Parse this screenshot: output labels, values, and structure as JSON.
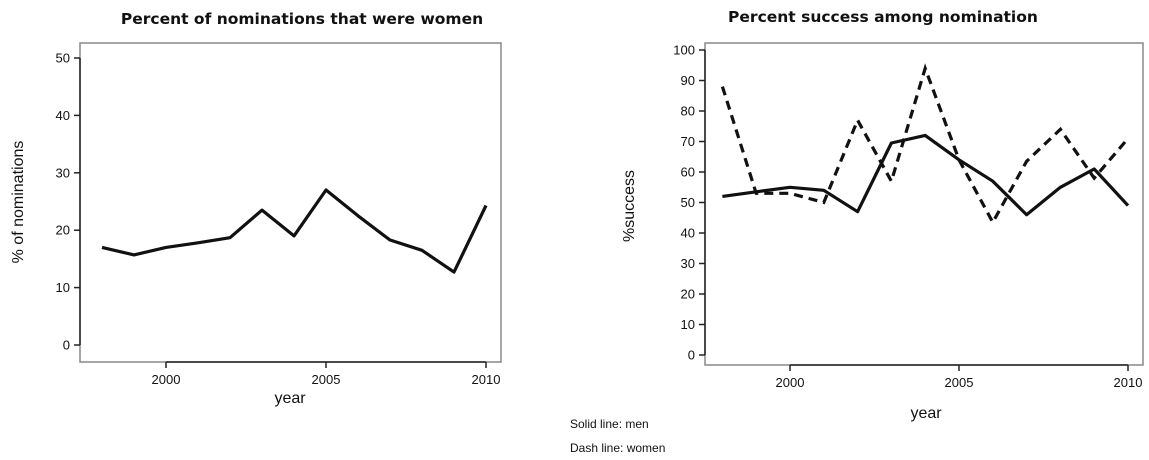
{
  "chart_data": [
    {
      "type": "line",
      "title": "Percent of nominations that were women",
      "xlabel": "year",
      "ylabel": "% of nominations",
      "xlim": [
        1997.5,
        2010.5
      ],
      "ylim": [
        0,
        50
      ],
      "xticks": [
        2000,
        2005,
        2010
      ],
      "yticks": [
        0,
        10,
        20,
        30,
        40,
        50
      ],
      "grid": false,
      "series": [
        {
          "style": "solid",
          "x": [
            1998,
            1999,
            2000,
            2001,
            2002,
            2003,
            2004,
            2005,
            2006,
            2007,
            2008,
            2009,
            2010
          ],
          "values": [
            17,
            15.7,
            17,
            17.8,
            18.7,
            23.5,
            19,
            27,
            22.5,
            18.3,
            16.5,
            12.7,
            24.3
          ]
        }
      ]
    },
    {
      "type": "line",
      "title": "Percent success among nomination",
      "xlabel": "year",
      "ylabel": "%success",
      "xlim": [
        1997.5,
        2010.1
      ],
      "ylim": [
        0,
        100
      ],
      "xticks": [
        2000,
        2005,
        2010
      ],
      "yticks": [
        0,
        10,
        20,
        30,
        40,
        50,
        60,
        70,
        80,
        90,
        100
      ],
      "grid": false,
      "legend_notes": [
        "Solid line: men",
        "Dash line: women"
      ],
      "series": [
        {
          "style": "solid",
          "x": [
            1998,
            1999,
            2000,
            2001,
            2002,
            2003,
            2004,
            2005,
            2006,
            2007,
            2008,
            2009,
            2010
          ],
          "values": [
            52,
            53.5,
            55,
            54,
            47,
            69.5,
            72,
            64,
            57,
            46,
            55,
            61,
            49
          ]
        },
        {
          "style": "dash",
          "x": [
            1998,
            1999,
            2000,
            2001,
            2002,
            2003,
            2004,
            2005,
            2006,
            2007,
            2008,
            2009,
            2010
          ],
          "values": [
            88,
            53,
            53,
            50,
            77,
            57,
            94,
            64,
            43.5,
            63.5,
            74,
            58,
            71
          ]
        }
      ]
    }
  ]
}
